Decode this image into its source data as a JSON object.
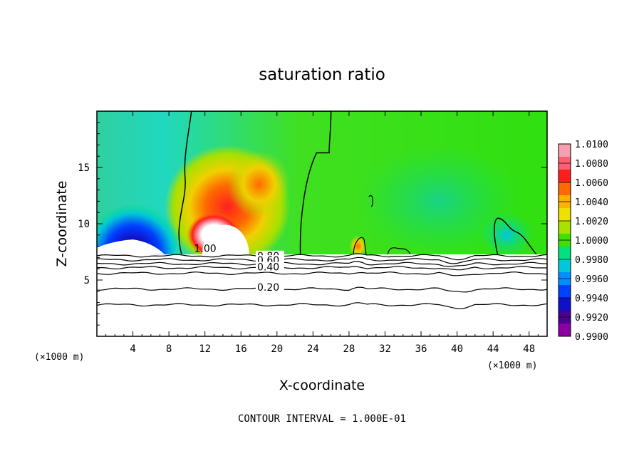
{
  "chart_data": {
    "type": "heatmap",
    "title": "saturation ratio",
    "xlabel": "X-coordinate",
    "ylabel": "Z-coordinate",
    "x_unit": "(×1000 m)",
    "x_ticks": [
      4,
      8,
      12,
      16,
      20,
      24,
      28,
      32,
      36,
      40,
      44,
      48
    ],
    "y_ticks": [
      5,
      10,
      15
    ],
    "xlim": [
      0,
      50
    ],
    "ylim": [
      0,
      20
    ],
    "colorbar": {
      "levels": [
        "1.0100",
        "1.0080",
        "1.0060",
        "1.0040",
        "1.0020",
        "1.0000",
        "0.9980",
        "0.9960",
        "0.9940",
        "0.9920",
        "0.9900"
      ],
      "colors": [
        "#f4a0b0",
        "#ff6070",
        "#ff1e1e",
        "#ff6a00",
        "#ffb000",
        "#f0e000",
        "#a8e000",
        "#40e000",
        "#00e080",
        "#00c8d8",
        "#0090ff",
        "#0040ff",
        "#1010c8",
        "#4a0090",
        "#8a00a0"
      ]
    },
    "contour_labels": [
      "1.00",
      "0.80",
      "0.60",
      "0.40",
      "0.20"
    ],
    "contour_interval_text": "CONTOUR INTERVAL = 1.000E-01",
    "surface_height_km": 7.3,
    "field_blobs": [
      {
        "x": 14.5,
        "z": 11.5,
        "rx": 7.0,
        "rz": 5.5,
        "value": 1.006
      },
      {
        "x": 18.0,
        "z": 13.5,
        "rx": 3.5,
        "rz": 3.0,
        "value": 1.004
      },
      {
        "x": 13.0,
        "z": 9.0,
        "rx": 3.0,
        "rz": 2.0,
        "value": 1.01
      },
      {
        "x": 4.0,
        "z": 9.0,
        "rx": 5.0,
        "rz": 4.0,
        "value": 0.992
      },
      {
        "x": 29.0,
        "z": 8.0,
        "rx": 1.0,
        "rz": 1.0,
        "value": 1.004
      },
      {
        "x": 45.5,
        "z": 9.0,
        "rx": 3.0,
        "rz": 2.0,
        "value": 1.0
      }
    ]
  }
}
